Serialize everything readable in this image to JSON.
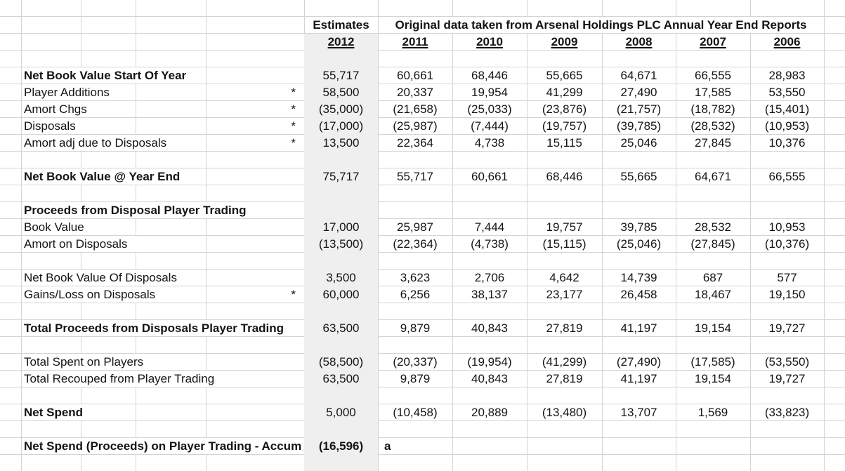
{
  "sheet": {
    "estimates_header": "Estimates",
    "estimate_year": "2012",
    "source_header": "Original data taken from Arsenal Holdings PLC Annual Year End Reports",
    "years": [
      "2011",
      "2010",
      "2009",
      "2008",
      "2007",
      "2006"
    ],
    "footnote_marker": "*",
    "rows": [
      {
        "row": 4,
        "label": "Net Book Value Start Of Year",
        "bold": true,
        "star": false,
        "estimate": "55,717",
        "values": [
          "60,661",
          "68,446",
          "55,665",
          "64,671",
          "66,555",
          "28,983"
        ]
      },
      {
        "row": 5,
        "label": "Player Additions",
        "bold": false,
        "star": true,
        "estimate": "58,500",
        "values": [
          "20,337",
          "19,954",
          "41,299",
          "27,490",
          "17,585",
          "53,550"
        ]
      },
      {
        "row": 6,
        "label": "Amort Chgs",
        "bold": false,
        "star": true,
        "estimate": "(35,000)",
        "values": [
          "(21,658)",
          "(25,033)",
          "(23,876)",
          "(21,757)",
          "(18,782)",
          "(15,401)"
        ]
      },
      {
        "row": 7,
        "label": "Disposals",
        "bold": false,
        "star": true,
        "estimate": "(17,000)",
        "values": [
          "(25,987)",
          "(7,444)",
          "(19,757)",
          "(39,785)",
          "(28,532)",
          "(10,953)"
        ]
      },
      {
        "row": 8,
        "label": "Amort adj due to Disposals",
        "bold": false,
        "star": true,
        "estimate": "13,500",
        "values": [
          "22,364",
          "4,738",
          "15,115",
          "25,046",
          "27,845",
          "10,376"
        ]
      },
      {
        "row": 10,
        "label": "Net Book Value @ Year End",
        "bold": true,
        "star": false,
        "estimate": "75,717",
        "values": [
          "55,717",
          "60,661",
          "68,446",
          "55,665",
          "64,671",
          "66,555"
        ]
      },
      {
        "row": 12,
        "label": "Proceeds from Disposal Player Trading",
        "bold": true,
        "star": false,
        "estimate": "",
        "values": [
          "",
          "",
          "",
          "",
          "",
          ""
        ]
      },
      {
        "row": 13,
        "label": "Book Value",
        "bold": false,
        "star": false,
        "estimate": "17,000",
        "values": [
          "25,987",
          "7,444",
          "19,757",
          "39,785",
          "28,532",
          "10,953"
        ]
      },
      {
        "row": 14,
        "label": "Amort on Disposals",
        "bold": false,
        "star": false,
        "estimate": "(13,500)",
        "values": [
          "(22,364)",
          "(4,738)",
          "(15,115)",
          "(25,046)",
          "(27,845)",
          "(10,376)"
        ]
      },
      {
        "row": 16,
        "label": "Net Book Value Of Disposals",
        "bold": false,
        "star": false,
        "estimate": "3,500",
        "values": [
          "3,623",
          "2,706",
          "4,642",
          "14,739",
          "687",
          "577"
        ]
      },
      {
        "row": 17,
        "label": "Gains/Loss on Disposals",
        "bold": false,
        "star": true,
        "estimate": "60,000",
        "values": [
          "6,256",
          "38,137",
          "23,177",
          "26,458",
          "18,467",
          "19,150"
        ]
      },
      {
        "row": 19,
        "label": "Total Proceeds from Disposals Player Trading",
        "bold": true,
        "star": false,
        "estimate": "63,500",
        "values": [
          "9,879",
          "40,843",
          "27,819",
          "41,197",
          "19,154",
          "19,727"
        ]
      },
      {
        "row": 21,
        "label": "Total Spent on Players",
        "bold": false,
        "star": false,
        "estimate": "(58,500)",
        "values": [
          "(20,337)",
          "(19,954)",
          "(41,299)",
          "(27,490)",
          "(17,585)",
          "(53,550)"
        ]
      },
      {
        "row": 22,
        "label": "Total Recouped from Player Trading",
        "bold": false,
        "star": false,
        "estimate": "63,500",
        "values": [
          "9,879",
          "40,843",
          "27,819",
          "41,197",
          "19,154",
          "19,727"
        ]
      },
      {
        "row": 24,
        "label": "Net Spend",
        "bold": true,
        "star": false,
        "estimate": "5,000",
        "values": [
          "(10,458)",
          "20,889",
          "(13,480)",
          "13,707",
          "1,569",
          "(33,823)"
        ]
      },
      {
        "row": 26,
        "label": "Net Spend (Proceeds) on Player Trading - Accum",
        "bold": true,
        "star": false,
        "estimate": "(16,596)",
        "estimate_bold": true,
        "values": [
          "",
          "",
          "",
          "",
          "",
          ""
        ],
        "note": "a"
      }
    ],
    "colors": {
      "grid": "#d4d4d4",
      "highlight_2012_column": "#efefef",
      "text": "#141414",
      "background": "#ffffff"
    }
  }
}
